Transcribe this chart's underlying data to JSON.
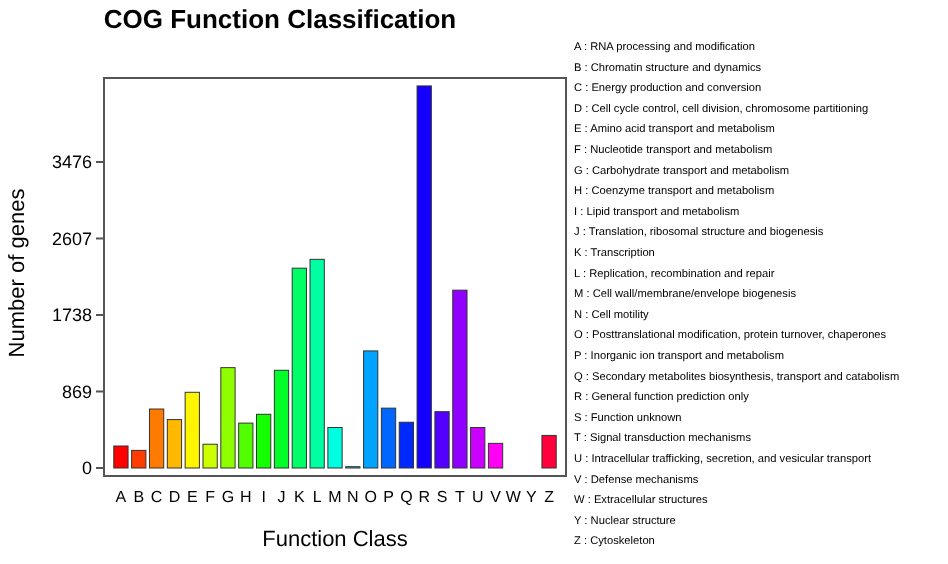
{
  "chart_data": {
    "type": "bar",
    "title": "COG Function Classification",
    "xlabel": "Function Class",
    "ylabel": "Number of genes",
    "categories": [
      "A",
      "B",
      "C",
      "D",
      "E",
      "F",
      "G",
      "H",
      "I",
      "J",
      "K",
      "L",
      "M",
      "N",
      "O",
      "P",
      "Q",
      "R",
      "S",
      "T",
      "U",
      "V",
      "W",
      "Y",
      "Z"
    ],
    "values": [
      250,
      200,
      670,
      550,
      860,
      270,
      1140,
      510,
      610,
      1110,
      2270,
      2370,
      460,
      15,
      1330,
      680,
      520,
      4340,
      640,
      2020,
      460,
      280,
      0,
      0,
      370
    ],
    "colors": [
      "#ff0000",
      "#ff3d00",
      "#ff7a00",
      "#ffb800",
      "#fff500",
      "#ccff00",
      "#8fff00",
      "#52ff00",
      "#14ff00",
      "#00ff29",
      "#00ff66",
      "#00ffa3",
      "#00ffe0",
      "#00e0ff",
      "#00a3ff",
      "#0066ff",
      "#0029ff",
      "#1400ff",
      "#5200ff",
      "#8f00ff",
      "#cc00ff",
      "#ff00f5",
      "#ff00b8",
      "#ff007a",
      "#ff003d"
    ],
    "ylim": [
      0,
      4430
    ],
    "yticks": [
      0,
      869,
      1738,
      2607,
      3476
    ],
    "grid": false,
    "annotations": [
      "A : RNA processing and modification",
      "B : Chromatin structure and dynamics",
      "C : Energy production and conversion",
      "D : Cell cycle control, cell division, chromosome partitioning",
      "E : Amino acid transport and metabolism",
      "F : Nucleotide transport and metabolism",
      "G : Carbohydrate transport and metabolism",
      "H : Coenzyme transport and metabolism",
      "I : Lipid transport and metabolism",
      "J : Translation, ribosomal structure and biogenesis",
      "K : Transcription",
      "L : Replication, recombination and repair",
      "M : Cell wall/membrane/envelope biogenesis",
      "N : Cell motility",
      "O : Posttranslational modification, protein turnover, chaperones",
      "P : Inorganic ion transport and metabolism",
      "Q : Secondary metabolites biosynthesis, transport and catabolism",
      "R : General function prediction only",
      "S : Function unknown",
      "T : Signal transduction mechanisms",
      "U : Intracellular trafficking, secretion, and vesicular transport",
      "V : Defense mechanisms",
      "W : Extracellular structures",
      "Y : Nuclear structure",
      "Z : Cytoskeleton"
    ]
  }
}
